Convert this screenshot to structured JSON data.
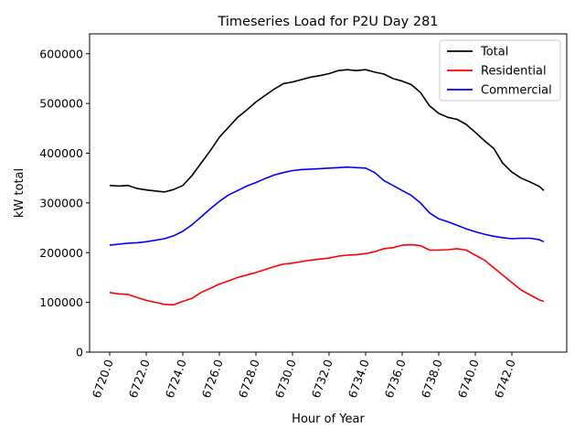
{
  "chart_data": {
    "type": "line",
    "title": "Timeseries Load for P2U   Day 281",
    "xlabel": "Hour of Year",
    "ylabel": "kW total",
    "xlim": [
      6718.9,
      6745.0
    ],
    "ylim": [
      0,
      640000
    ],
    "x_ticks": [
      6720,
      6722,
      6724,
      6726,
      6728,
      6730,
      6732,
      6734,
      6736,
      6738,
      6740,
      6742
    ],
    "x_tick_labels": [
      "6720.0",
      "6722.0",
      "6724.0",
      "6726.0",
      "6728.0",
      "6730.0",
      "6732.0",
      "6734.0",
      "6736.0",
      "6738.0",
      "6740.0",
      "6742.0"
    ],
    "y_ticks": [
      0,
      100000,
      200000,
      300000,
      400000,
      500000,
      600000
    ],
    "y_tick_labels": [
      "0",
      "100000",
      "200000",
      "300000",
      "400000",
      "500000",
      "600000"
    ],
    "grid": false,
    "legend_position": "top-right",
    "x": [
      6720.0,
      6720.5,
      6721.0,
      6721.5,
      6722.0,
      6722.5,
      6723.0,
      6723.5,
      6724.0,
      6724.5,
      6725.0,
      6725.5,
      6726.0,
      6726.5,
      6727.0,
      6727.5,
      6728.0,
      6728.5,
      6729.0,
      6729.5,
      6730.0,
      6730.5,
      6731.0,
      6731.5,
      6732.0,
      6732.5,
      6733.0,
      6733.5,
      6734.0,
      6734.5,
      6735.0,
      6735.5,
      6736.0,
      6736.5,
      6737.0,
      6737.5,
      6738.0,
      6738.5,
      6739.0,
      6739.5,
      6740.0,
      6740.5,
      6741.0,
      6741.5,
      6742.0,
      6742.5,
      6743.0,
      6743.5,
      6743.75
    ],
    "series": [
      {
        "name": "Total",
        "color": "#000000",
        "values": [
          335000,
          334000,
          335000,
          329000,
          326000,
          324000,
          322000,
          327000,
          335000,
          355000,
          380000,
          405000,
          432000,
          452000,
          472000,
          487000,
          503000,
          516000,
          529000,
          540000,
          543000,
          548000,
          553000,
          556000,
          560000,
          566000,
          568000,
          566000,
          568000,
          563000,
          559000,
          550000,
          545000,
          538000,
          522000,
          495000,
          480000,
          472000,
          468000,
          458000,
          442000,
          425000,
          410000,
          380000,
          362000,
          350000,
          342000,
          333000,
          325000
        ]
      },
      {
        "name": "Residential",
        "color": "#ff0000",
        "values": [
          120000,
          117000,
          116000,
          110000,
          104000,
          100000,
          96000,
          95000,
          102000,
          108000,
          120000,
          128000,
          137000,
          143000,
          150000,
          155000,
          160000,
          166000,
          172000,
          177000,
          179000,
          182000,
          185000,
          187000,
          189000,
          193000,
          195000,
          196000,
          198000,
          202000,
          208000,
          210000,
          215000,
          216000,
          214000,
          205000,
          205000,
          206000,
          208000,
          205000,
          195000,
          185000,
          170000,
          155000,
          140000,
          125000,
          115000,
          105000,
          102000
        ]
      },
      {
        "name": "Commercial",
        "color": "#0000ff",
        "values": [
          215000,
          217000,
          219000,
          220000,
          222000,
          225000,
          228000,
          234000,
          243000,
          256000,
          272000,
          288000,
          303000,
          316000,
          325000,
          334000,
          341000,
          349000,
          356000,
          361000,
          365000,
          367000,
          368000,
          369000,
          370000,
          371000,
          372000,
          371000,
          370000,
          361000,
          345000,
          335000,
          325000,
          315000,
          300000,
          280000,
          268000,
          262000,
          255000,
          248000,
          242000,
          237000,
          233000,
          230000,
          228000,
          229000,
          229000,
          226000,
          222000
        ]
      }
    ]
  }
}
